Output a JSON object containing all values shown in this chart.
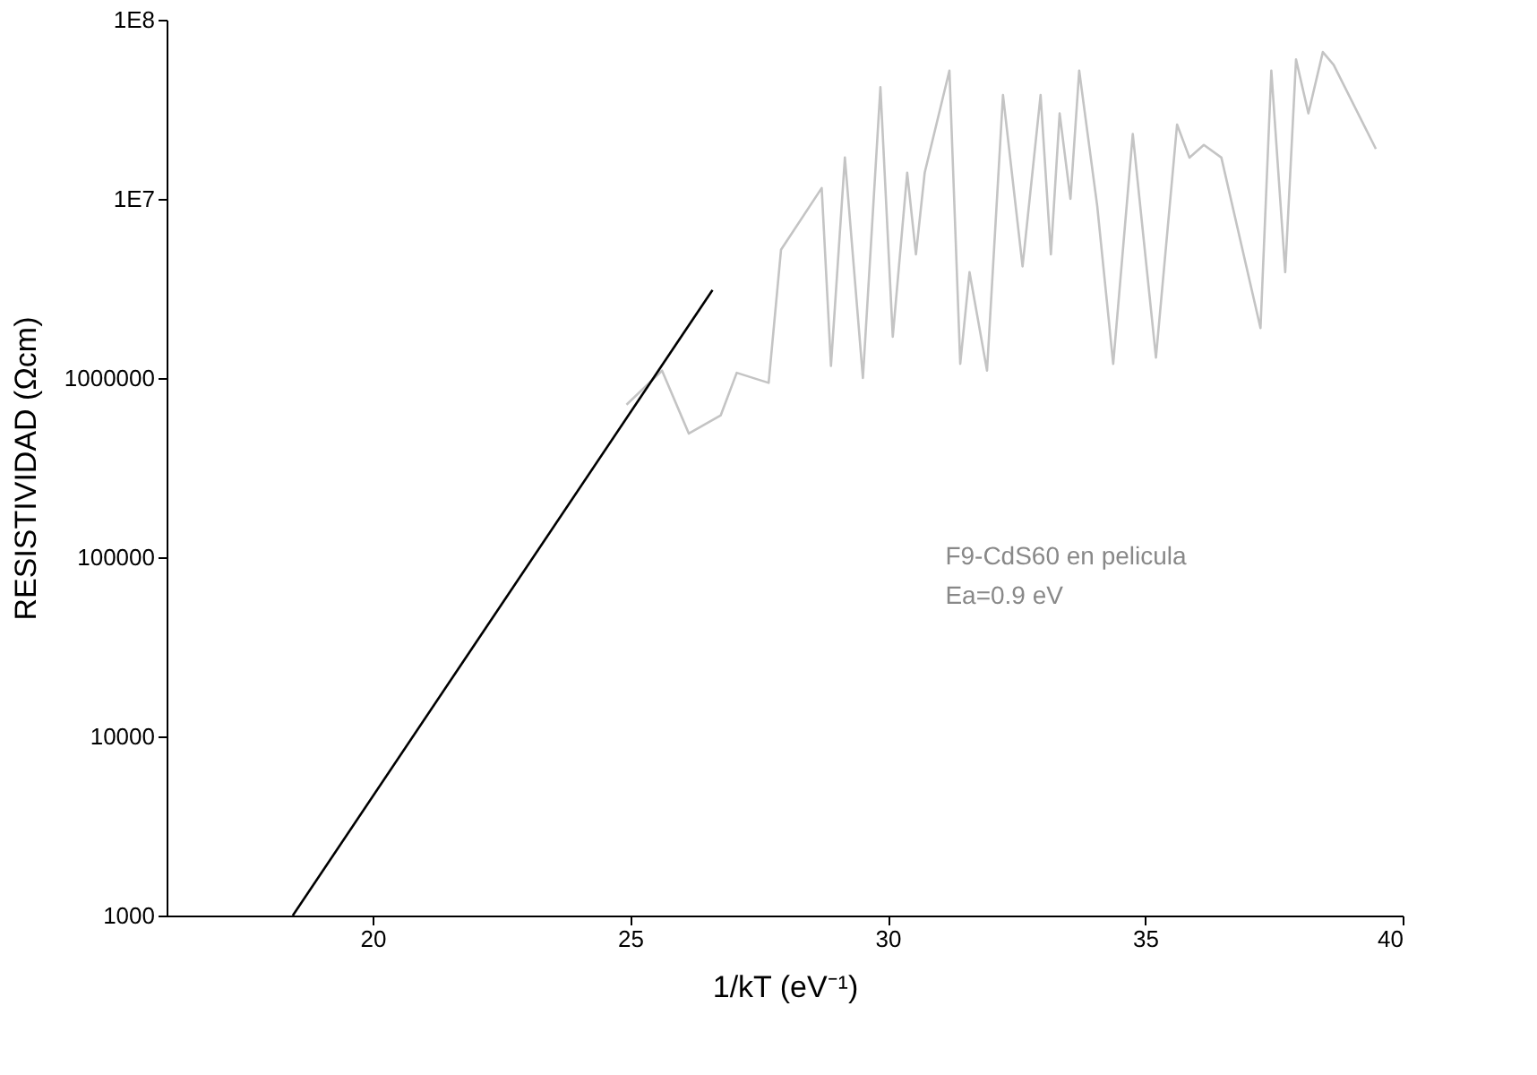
{
  "chart_data": {
    "type": "line",
    "xlabel": "1/kT (eV⁻¹)",
    "ylabel": "RESISTIVIDAD (Ωcm)",
    "log": "y",
    "xlim": [
      16,
      40
    ],
    "xticks": [
      20,
      25,
      30,
      35,
      40
    ],
    "ylim": [
      1000,
      100000000
    ],
    "yticks": [
      1000,
      10000,
      100000,
      1000000,
      {
        "value": 10000000,
        "label": "1E7"
      },
      {
        "value": 100000000,
        "label": "1E8"
      }
    ],
    "grid": false,
    "marker": "none",
    "line_style": "solid",
    "annotations": [
      "F9-CdS60 en pelicula",
      "Ea=0.9 eV"
    ],
    "series": [
      {
        "color": "#c4c4c4",
        "x": [
          24.93,
          25.62,
          26.14,
          26.76,
          27.07,
          27.69,
          27.93,
          28.72,
          28.9,
          29.17,
          29.52,
          29.86,
          30.1,
          30.38,
          30.55,
          30.72,
          31.2,
          31.41,
          31.59,
          31.93,
          32.24,
          32.62,
          32.97,
          33.17,
          33.34,
          33.55,
          33.72,
          34.07,
          34.38,
          34.76,
          35.21,
          35.62,
          35.86,
          36.14,
          36.48,
          37.24,
          37.45,
          37.72,
          37.93,
          38.17,
          38.45,
          38.66,
          39.48
        ],
        "values": [
          710000,
          1100000,
          490000,
          620000,
          1070000,
          940000,
          5200000,
          11500000,
          1170000,
          17000000,
          1000000,
          42000000,
          1700000,
          14000000,
          4900000,
          14000000,
          52000000,
          1200000,
          3900000,
          1100000,
          38000000,
          4200000,
          38000000,
          4900000,
          30000000,
          10000000,
          52000000,
          9100000,
          1200000,
          23000000,
          1300000,
          26000000,
          17000000,
          20000000,
          17000000,
          1900000,
          52000000,
          3900000,
          60000000,
          30000000,
          66000000,
          56000000,
          19000000
        ]
      },
      {
        "color": "#000000",
        "x": [
          18.45,
          26.6
        ],
        "values": [
          1000,
          3100000
        ]
      }
    ]
  }
}
